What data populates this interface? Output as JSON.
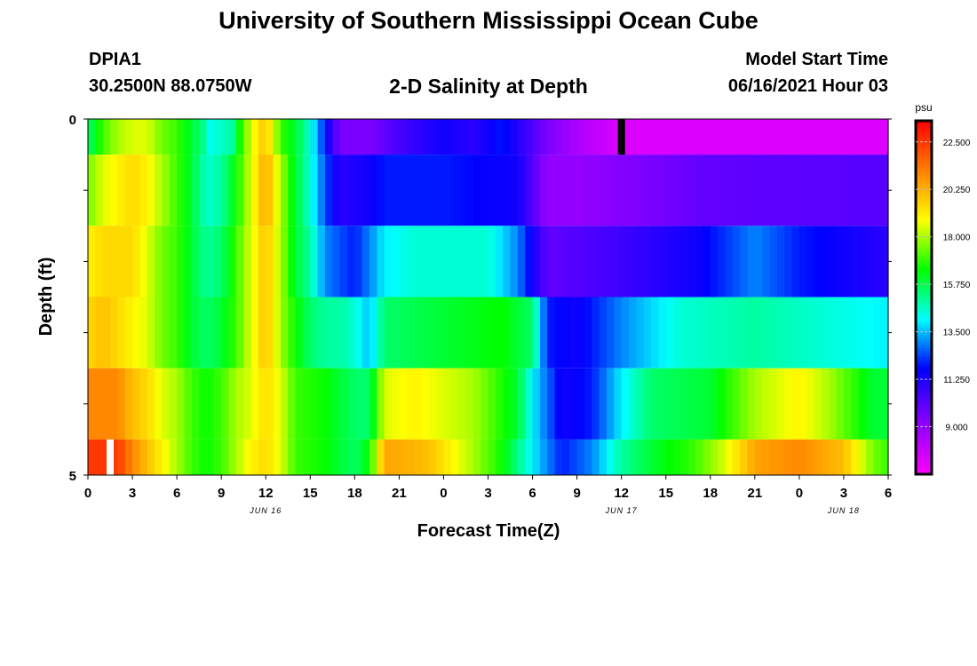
{
  "header": {
    "title": "University of Southern Mississippi Ocean Cube",
    "station_id": "DPIA1",
    "station_coords": "30.2500N  88.0750W",
    "chart_title": "2-D Salinity at Depth",
    "model_start_label": "Model Start Time",
    "model_start_value": "06/16/2021 Hour 03"
  },
  "footer": {
    "title": "University of Southern Mississippi Ocean Cube"
  },
  "chart_data": {
    "type": "heatmap",
    "title": "2-D Salinity at Depth",
    "xlabel": "Forecast Time(Z)",
    "ylabel": "Depth (ft)",
    "x_tick_labels": [
      "0",
      "3",
      "6",
      "9",
      "12",
      "15",
      "18",
      "21",
      "0",
      "3",
      "6",
      "9",
      "12",
      "15",
      "18",
      "21",
      "0",
      "3",
      "6"
    ],
    "date_labels": [
      {
        "text": "JUN 16",
        "hour": 12
      },
      {
        "text": "JUN 17",
        "hour": 36
      },
      {
        "text": "JUN 18",
        "hour": 51
      }
    ],
    "xlim_hours": [
      0,
      54
    ],
    "y_tick_labels": [
      {
        "text": "0",
        "depth": 0
      },
      {
        "text": "5",
        "depth": 5
      }
    ],
    "ylim": [
      0,
      5
    ],
    "colorbar": {
      "unit": "psu",
      "min": 6.75,
      "max": 23.5,
      "tick_values": [
        22.5,
        20.25,
        18.0,
        15.75,
        13.5,
        11.25,
        9.0
      ],
      "tick_labels": [
        "22.500",
        "20.250",
        "18.000",
        "15.750",
        "13.500",
        "11.250",
        "9.000"
      ]
    },
    "rows": [
      {
        "depth_range": [
          0,
          0.5
        ],
        "anchors": [
          [
            0,
            15.5
          ],
          [
            1,
            17
          ],
          [
            2,
            18
          ],
          [
            3,
            18.5
          ],
          [
            4,
            18.5
          ],
          [
            5,
            17.5
          ],
          [
            6,
            17
          ],
          [
            7,
            16
          ],
          [
            8,
            15
          ],
          [
            8.5,
            13.5
          ],
          [
            9,
            15.5
          ],
          [
            9.5,
            14
          ],
          [
            10,
            16
          ],
          [
            11,
            18.5
          ],
          [
            12,
            20
          ],
          [
            13,
            17
          ],
          [
            14,
            16
          ],
          [
            15,
            14.5
          ],
          [
            16,
            12
          ],
          [
            17,
            9.5
          ],
          [
            19,
            9.5
          ],
          [
            21,
            10.5
          ],
          [
            24,
            11.5
          ],
          [
            26,
            11
          ],
          [
            28,
            12
          ],
          [
            31,
            9.5
          ],
          [
            33,
            8.5
          ],
          [
            36,
            7.5
          ],
          [
            54,
            7.5
          ]
        ]
      },
      {
        "depth_range": [
          0.5,
          1.5
        ],
        "anchors": [
          [
            0,
            17.5
          ],
          [
            1,
            18.5
          ],
          [
            2,
            19
          ],
          [
            3,
            19.5
          ],
          [
            4,
            19
          ],
          [
            5,
            18
          ],
          [
            6,
            17
          ],
          [
            7,
            16
          ],
          [
            8,
            14.5
          ],
          [
            9,
            15
          ],
          [
            10,
            16.5
          ],
          [
            11,
            18.5
          ],
          [
            12,
            20.5
          ],
          [
            13,
            18
          ],
          [
            14,
            16
          ],
          [
            15,
            14.5
          ],
          [
            16,
            12.5
          ],
          [
            17,
            11
          ],
          [
            19,
            11.5
          ],
          [
            20,
            12
          ],
          [
            24,
            12
          ],
          [
            29,
            11.5
          ],
          [
            31,
            9
          ],
          [
            33,
            9
          ],
          [
            42,
            10
          ],
          [
            54,
            10.2
          ]
        ]
      },
      {
        "depth_range": [
          1.5,
          2.5
        ],
        "anchors": [
          [
            0,
            19
          ],
          [
            1,
            19.5
          ],
          [
            2,
            19.5
          ],
          [
            3,
            19.5
          ],
          [
            4,
            18.5
          ],
          [
            5,
            17.5
          ],
          [
            6,
            17
          ],
          [
            7,
            16
          ],
          [
            8,
            15
          ],
          [
            9,
            15.5
          ],
          [
            10,
            17
          ],
          [
            11,
            18.5
          ],
          [
            12,
            20
          ],
          [
            13,
            18
          ],
          [
            14,
            16
          ],
          [
            15,
            15
          ],
          [
            16,
            13
          ],
          [
            17,
            12.5
          ],
          [
            18,
            12
          ],
          [
            19,
            13
          ],
          [
            20,
            14
          ],
          [
            22,
            14.5
          ],
          [
            27,
            14.5
          ],
          [
            29,
            13
          ],
          [
            31,
            10
          ],
          [
            35,
            10.5
          ],
          [
            41,
            11.5
          ],
          [
            45,
            13
          ],
          [
            48,
            12
          ],
          [
            54,
            11
          ]
        ]
      },
      {
        "depth_range": [
          2.5,
          3.5
        ],
        "anchors": [
          [
            0,
            19.5
          ],
          [
            1,
            20
          ],
          [
            2,
            19.5
          ],
          [
            3,
            19
          ],
          [
            4,
            18.5
          ],
          [
            5,
            17.5
          ],
          [
            6,
            17
          ],
          [
            7,
            16
          ],
          [
            8,
            15.5
          ],
          [
            9,
            16
          ],
          [
            10,
            17
          ],
          [
            11,
            18.5
          ],
          [
            12,
            20
          ],
          [
            13,
            18
          ],
          [
            14,
            16.5
          ],
          [
            15,
            15.5
          ],
          [
            16,
            15
          ],
          [
            17,
            15
          ],
          [
            18,
            14.5
          ],
          [
            19,
            13.5
          ],
          [
            20,
            15.5
          ],
          [
            24,
            16
          ],
          [
            28,
            16.5
          ],
          [
            30,
            15.5
          ],
          [
            31,
            12
          ],
          [
            33,
            11.5
          ],
          [
            36,
            13
          ],
          [
            40,
            14.5
          ],
          [
            45,
            15
          ],
          [
            54,
            14
          ]
        ]
      },
      {
        "depth_range": [
          3.5,
          4.5
        ],
        "anchors": [
          [
            0,
            21
          ],
          [
            2,
            21
          ],
          [
            3,
            20
          ],
          [
            4,
            19.5
          ],
          [
            5,
            18.5
          ],
          [
            6,
            18
          ],
          [
            7,
            17
          ],
          [
            8,
            16.5
          ],
          [
            9,
            17
          ],
          [
            10,
            18
          ],
          [
            11,
            18.5
          ],
          [
            12,
            19.5
          ],
          [
            13,
            18.5
          ],
          [
            14,
            17
          ],
          [
            16,
            16.5
          ],
          [
            18,
            15.5
          ],
          [
            19,
            15.5
          ],
          [
            20,
            18.5
          ],
          [
            22,
            19
          ],
          [
            26,
            18
          ],
          [
            29,
            16
          ],
          [
            30,
            14
          ],
          [
            32,
            11.5
          ],
          [
            34,
            12
          ],
          [
            36,
            14
          ],
          [
            38,
            15.5
          ],
          [
            42,
            16
          ],
          [
            45,
            18
          ],
          [
            48,
            19
          ],
          [
            50,
            18
          ],
          [
            53,
            16
          ],
          [
            54,
            16
          ]
        ]
      },
      {
        "depth_range": [
          4.5,
          5
        ],
        "anchors": [
          [
            0,
            22.5
          ],
          [
            2,
            22.5
          ],
          [
            3,
            21
          ],
          [
            4,
            20
          ],
          [
            5,
            19
          ],
          [
            6,
            18
          ],
          [
            7,
            17
          ],
          [
            8,
            16.5
          ],
          [
            9,
            17
          ],
          [
            10,
            18
          ],
          [
            11,
            19
          ],
          [
            12,
            19.5
          ],
          [
            13,
            18.5
          ],
          [
            14,
            17
          ],
          [
            16,
            16.5
          ],
          [
            18,
            15.5
          ],
          [
            19,
            16.5
          ],
          [
            20,
            20.5
          ],
          [
            23,
            20
          ],
          [
            26,
            18
          ],
          [
            28,
            16.5
          ],
          [
            30,
            14
          ],
          [
            32,
            12
          ],
          [
            34,
            13
          ],
          [
            36,
            15
          ],
          [
            38,
            16
          ],
          [
            41,
            17
          ],
          [
            43,
            18.5
          ],
          [
            45,
            20.5
          ],
          [
            48,
            21
          ],
          [
            51,
            20
          ],
          [
            53,
            17.5
          ],
          [
            54,
            17
          ]
        ]
      }
    ],
    "gap_markers": [
      {
        "hour": 36,
        "depth_range": [
          0,
          0.5
        ],
        "color": "#000000"
      },
      {
        "hour": 1.5,
        "depth_range": [
          4.5,
          5
        ],
        "color": "#ffffff"
      }
    ]
  }
}
